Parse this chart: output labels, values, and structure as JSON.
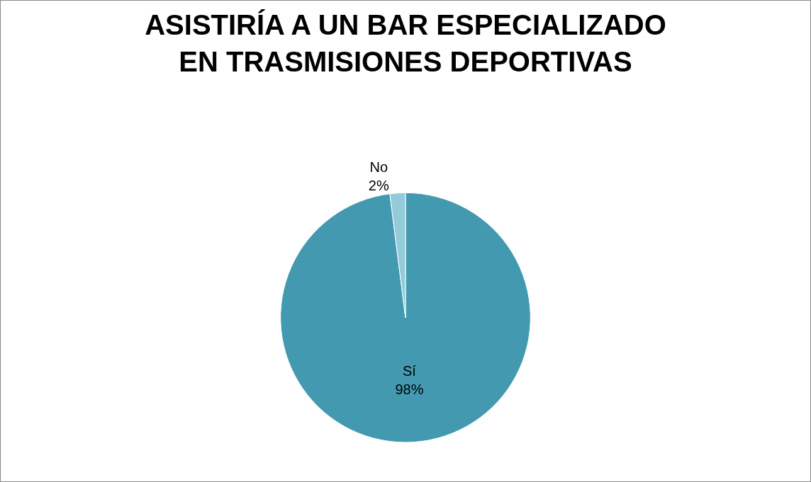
{
  "chart_data": {
    "type": "pie",
    "title": "ASISTIRÍA A UN BAR ESPECIALIZADO EN TRASMISIONES DEPORTIVAS",
    "categories": [
      "Sí",
      "No"
    ],
    "values": [
      98,
      2
    ],
    "value_labels": [
      "98%",
      "2%"
    ],
    "colors": [
      "#4399b0",
      "#93cbdb"
    ],
    "legend": false
  }
}
